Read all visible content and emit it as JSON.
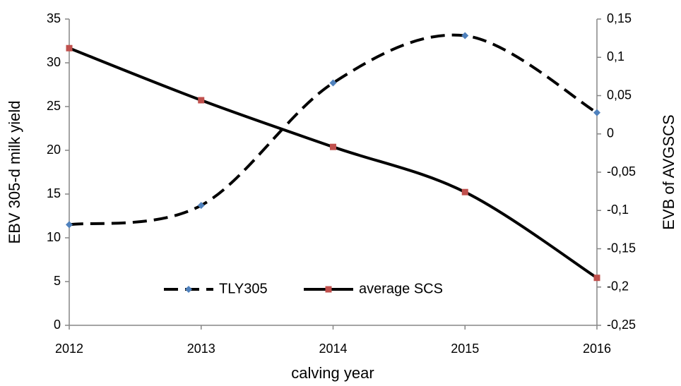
{
  "chart_data": {
    "type": "line",
    "x_label": "calving year",
    "y_label": "EBV 305-d milk yield",
    "y2_label": "EVB of AVGSCS",
    "x": [
      2012,
      2013,
      2014,
      2015,
      2016
    ],
    "xlim": [
      2012,
      2016
    ],
    "xticks": [
      2012,
      2013,
      2014,
      2015,
      2016
    ],
    "ylim": [
      0,
      35
    ],
    "yticks": [
      0,
      5,
      10,
      15,
      20,
      25,
      30,
      35
    ],
    "y2lim": [
      -0.25,
      0.15
    ],
    "y2ticks": [
      {
        "value": -0.25,
        "label": "-0,25"
      },
      {
        "value": -0.2,
        "label": "-0,2"
      },
      {
        "value": -0.15,
        "label": "-0,15"
      },
      {
        "value": -0.1,
        "label": "-0,1"
      },
      {
        "value": -0.05,
        "label": "-0,05"
      },
      0,
      {
        "value": 0.05,
        "label": "0,05"
      },
      {
        "value": 0.1,
        "label": "0,1"
      },
      {
        "value": 0.15,
        "label": "0,15"
      }
    ],
    "grid": false,
    "smooth": true,
    "legend": "lower center",
    "series": [
      {
        "name": "TLY305",
        "color": "#000000",
        "marker_color": "#4f81bd",
        "marker": "diamond",
        "dash": true,
        "values": [
          11.5,
          13.7,
          27.7,
          33.1,
          24.3
        ]
      },
      {
        "name": "average SCS",
        "color": "#000000",
        "marker_color": "#c0504d",
        "marker": "square",
        "dash": false,
        "axis": "y2",
        "values": [
          0.112,
          0.044,
          -0.017,
          -0.076,
          -0.188
        ]
      }
    ]
  }
}
